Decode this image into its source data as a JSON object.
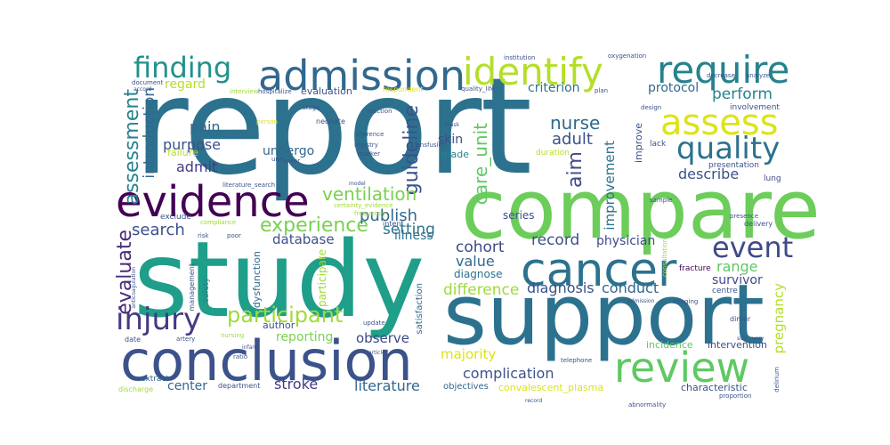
{
  "words": [
    {
      "text": "report",
      "color": "#2c728e"
    },
    {
      "text": "compare",
      "color": "#6ccd5a"
    },
    {
      "text": "study",
      "color": "#1f9e89"
    },
    {
      "text": "support",
      "color": "#2c728e"
    },
    {
      "text": "conclusion",
      "color": "#3b528b"
    },
    {
      "text": "review",
      "color": "#5ec962"
    },
    {
      "text": "cancer",
      "color": "#2c728e"
    },
    {
      "text": "admission",
      "color": "#31688e"
    },
    {
      "text": "identify",
      "color": "#b5de2b"
    },
    {
      "text": "require",
      "color": "#26828e"
    },
    {
      "text": "assess",
      "color": "#dde318"
    },
    {
      "text": "quality",
      "color": "#2c728e"
    },
    {
      "text": "evidence",
      "color": "#440154"
    },
    {
      "text": "finding",
      "color": "#21918c"
    },
    {
      "text": "event",
      "color": "#3e4a89"
    },
    {
      "text": "injury",
      "color": "#443a83"
    },
    {
      "text": "participant",
      "color": "#a0da39"
    },
    {
      "text": "experience",
      "color": "#7ad151"
    },
    {
      "text": "assessment",
      "color": "#26828e"
    },
    {
      "text": "evaluate",
      "color": "#472d7b"
    },
    {
      "text": "introduction",
      "color": "#31688e"
    },
    {
      "text": "guideline",
      "color": "#3b528b"
    },
    {
      "text": "care_unit",
      "color": "#5ec962"
    },
    {
      "text": "aim",
      "color": "#3e4a89"
    },
    {
      "text": "nurse",
      "color": "#31688e"
    },
    {
      "text": "adult",
      "color": "#3b528b"
    },
    {
      "text": "ventilation",
      "color": "#7ad151"
    },
    {
      "text": "publish",
      "color": "#31688e"
    },
    {
      "text": "search",
      "color": "#3b528b"
    },
    {
      "text": "setting",
      "color": "#2c728e"
    },
    {
      "text": "pain",
      "color": "#31688e"
    },
    {
      "text": "purpose",
      "color": "#3b528b"
    },
    {
      "text": "admit",
      "color": "#443a83"
    },
    {
      "text": "undergo",
      "color": "#31688e"
    },
    {
      "text": "describe",
      "color": "#3b528b"
    },
    {
      "text": "improvement",
      "color": "#2c728e"
    },
    {
      "text": "perform",
      "color": "#26828e"
    },
    {
      "text": "regard",
      "color": "#b5de2b"
    },
    {
      "text": "criterion",
      "color": "#2c728e"
    },
    {
      "text": "protocol",
      "color": "#31688e"
    },
    {
      "text": "skin",
      "color": "#3b528b"
    },
    {
      "text": "grade",
      "color": "#26828e"
    },
    {
      "text": "cohort",
      "color": "#3e4a89"
    },
    {
      "text": "value",
      "color": "#31688e"
    },
    {
      "text": "diagnose",
      "color": "#2c728e"
    },
    {
      "text": "difference",
      "color": "#a0da39"
    },
    {
      "text": "diagnosis",
      "color": "#3b528b"
    },
    {
      "text": "conduct",
      "color": "#31688e"
    },
    {
      "text": "record",
      "color": "#3b528b"
    },
    {
      "text": "physician",
      "color": "#3e4a89"
    },
    {
      "text": "range",
      "color": "#5ec962"
    },
    {
      "text": "survivor",
      "color": "#3e4a89"
    },
    {
      "text": "pregnancy",
      "color": "#b5de2b"
    },
    {
      "text": "database",
      "color": "#3b528b"
    },
    {
      "text": "illness",
      "color": "#2c728e"
    },
    {
      "text": "majority",
      "color": "#dde318"
    },
    {
      "text": "observe",
      "color": "#3e4a89"
    },
    {
      "text": "reporting",
      "color": "#7ad151"
    },
    {
      "text": "complication",
      "color": "#3b528b"
    },
    {
      "text": "literature",
      "color": "#31688e"
    },
    {
      "text": "stroke",
      "color": "#443a83"
    },
    {
      "text": "center",
      "color": "#31688e"
    },
    {
      "text": "author",
      "color": "#3b528b"
    },
    {
      "text": "participate",
      "color": "#a0da39"
    },
    {
      "text": "dysfunction",
      "color": "#31688e"
    },
    {
      "text": "series",
      "color": "#3b528b"
    },
    {
      "text": "evaluation",
      "color": "#3b528b"
    },
    {
      "text": "lung",
      "color": "#3e4a89"
    },
    {
      "text": "intervention",
      "color": "#3b528b"
    },
    {
      "text": "incidence",
      "color": "#5ec962"
    },
    {
      "text": "characteristic",
      "color": "#3b528b"
    },
    {
      "text": "objectives",
      "color": "#31688e"
    },
    {
      "text": "department",
      "color": "#3b528b"
    },
    {
      "text": "discharge",
      "color": "#a0da39"
    },
    {
      "text": "extract",
      "color": "#31688e"
    },
    {
      "text": "safety",
      "color": "#26828e"
    },
    {
      "text": "management",
      "color": "#3b528b"
    },
    {
      "text": "satisfaction",
      "color": "#31688e"
    },
    {
      "text": "neonate",
      "color": "#3b528b"
    },
    {
      "text": "improve",
      "color": "#3b528b"
    },
    {
      "text": "centre",
      "color": "#3b528b"
    },
    {
      "text": "presentation",
      "color": "#3b528b"
    },
    {
      "text": "involvement",
      "color": "#3b528b"
    },
    {
      "text": "fracture",
      "color": "#440154"
    },
    {
      "text": "delivery",
      "color": "#3b528b"
    },
    {
      "text": "duration",
      "color": "#b5de2b"
    },
    {
      "text": "lack",
      "color": "#3b528b"
    },
    {
      "text": "oxygenation",
      "color": "#3b528b"
    },
    {
      "text": "institution",
      "color": "#3b528b"
    },
    {
      "text": "transfusion",
      "color": "#3b528b"
    },
    {
      "text": "registry",
      "color": "#3b528b"
    },
    {
      "text": "failure",
      "color": "#b5de2b"
    },
    {
      "text": "stage",
      "color": "#3b528b"
    },
    {
      "text": "date",
      "color": "#3b528b"
    },
    {
      "text": "artery",
      "color": "#3b528b"
    },
    {
      "text": "exclude",
      "color": "#3b528b"
    },
    {
      "text": "intent",
      "color": "#3b528b"
    },
    {
      "text": "respondent",
      "color": "#dde318"
    },
    {
      "text": "design",
      "color": "#3b528b"
    },
    {
      "text": "reference",
      "color": "#3b528b"
    },
    {
      "text": "marker",
      "color": "#3b528b"
    },
    {
      "text": "quality_life",
      "color": "#3b528b"
    },
    {
      "text": "hospitalize",
      "color": "#3b528b"
    },
    {
      "text": "interview",
      "color": "#a0da39"
    },
    {
      "text": "certainty_evidence",
      "color": "#a0da39"
    },
    {
      "text": "literature_search",
      "color": "#3b528b"
    },
    {
      "text": "frequency",
      "color": "#a0da39"
    },
    {
      "text": "compliance",
      "color": "#a0da39"
    },
    {
      "text": "update",
      "color": "#3b528b"
    },
    {
      "text": "nursing",
      "color": "#a0da39"
    },
    {
      "text": "ratio",
      "color": "#3b528b"
    },
    {
      "text": "abnormality",
      "color": "#3b528b"
    },
    {
      "text": "telephone",
      "color": "#3b528b"
    },
    {
      "text": "presence",
      "color": "#3b528b"
    },
    {
      "text": "dimer",
      "color": "#3b528b"
    },
    {
      "text": "proportion",
      "color": "#3b528b"
    },
    {
      "text": "convalescent_plasma",
      "color": "#dde318"
    },
    {
      "text": "unit",
      "color": "#3b528b"
    },
    {
      "text": "document",
      "color": "#3b528b"
    },
    {
      "text": "imaging",
      "color": "#3b528b"
    },
    {
      "text": "decrease",
      "color": "#3b528b"
    },
    {
      "text": "analyze",
      "color": "#3b528b"
    },
    {
      "text": "plan",
      "color": "#3b528b"
    },
    {
      "text": "person",
      "color": "#dde318"
    },
    {
      "text": "lower",
      "color": "#3b528b"
    },
    {
      "text": "reaction",
      "color": "#3b528b"
    },
    {
      "text": "poor",
      "color": "#3b528b"
    },
    {
      "text": "risk",
      "color": "#3b528b"
    },
    {
      "text": "size",
      "color": "#3b528b"
    },
    {
      "text": "very",
      "color": "#3b528b"
    },
    {
      "text": "delirium",
      "color": "#3b528b"
    },
    {
      "text": "consultation",
      "color": "#a0da39"
    },
    {
      "text": "anticoagulation",
      "color": "#3b528b"
    },
    {
      "text": "admission",
      "color": "#3b528b"
    },
    {
      "text": "record",
      "color": "#3b528b"
    },
    {
      "text": "mask",
      "color": "#3b528b"
    },
    {
      "text": "model",
      "color": "#3b528b"
    },
    {
      "text": "accord",
      "color": "#3b528b"
    },
    {
      "text": "article",
      "color": "#3b528b"
    },
    {
      "text": "infant",
      "color": "#3b528b"
    },
    {
      "text": "sample",
      "color": "#3b528b"
    }
  ]
}
